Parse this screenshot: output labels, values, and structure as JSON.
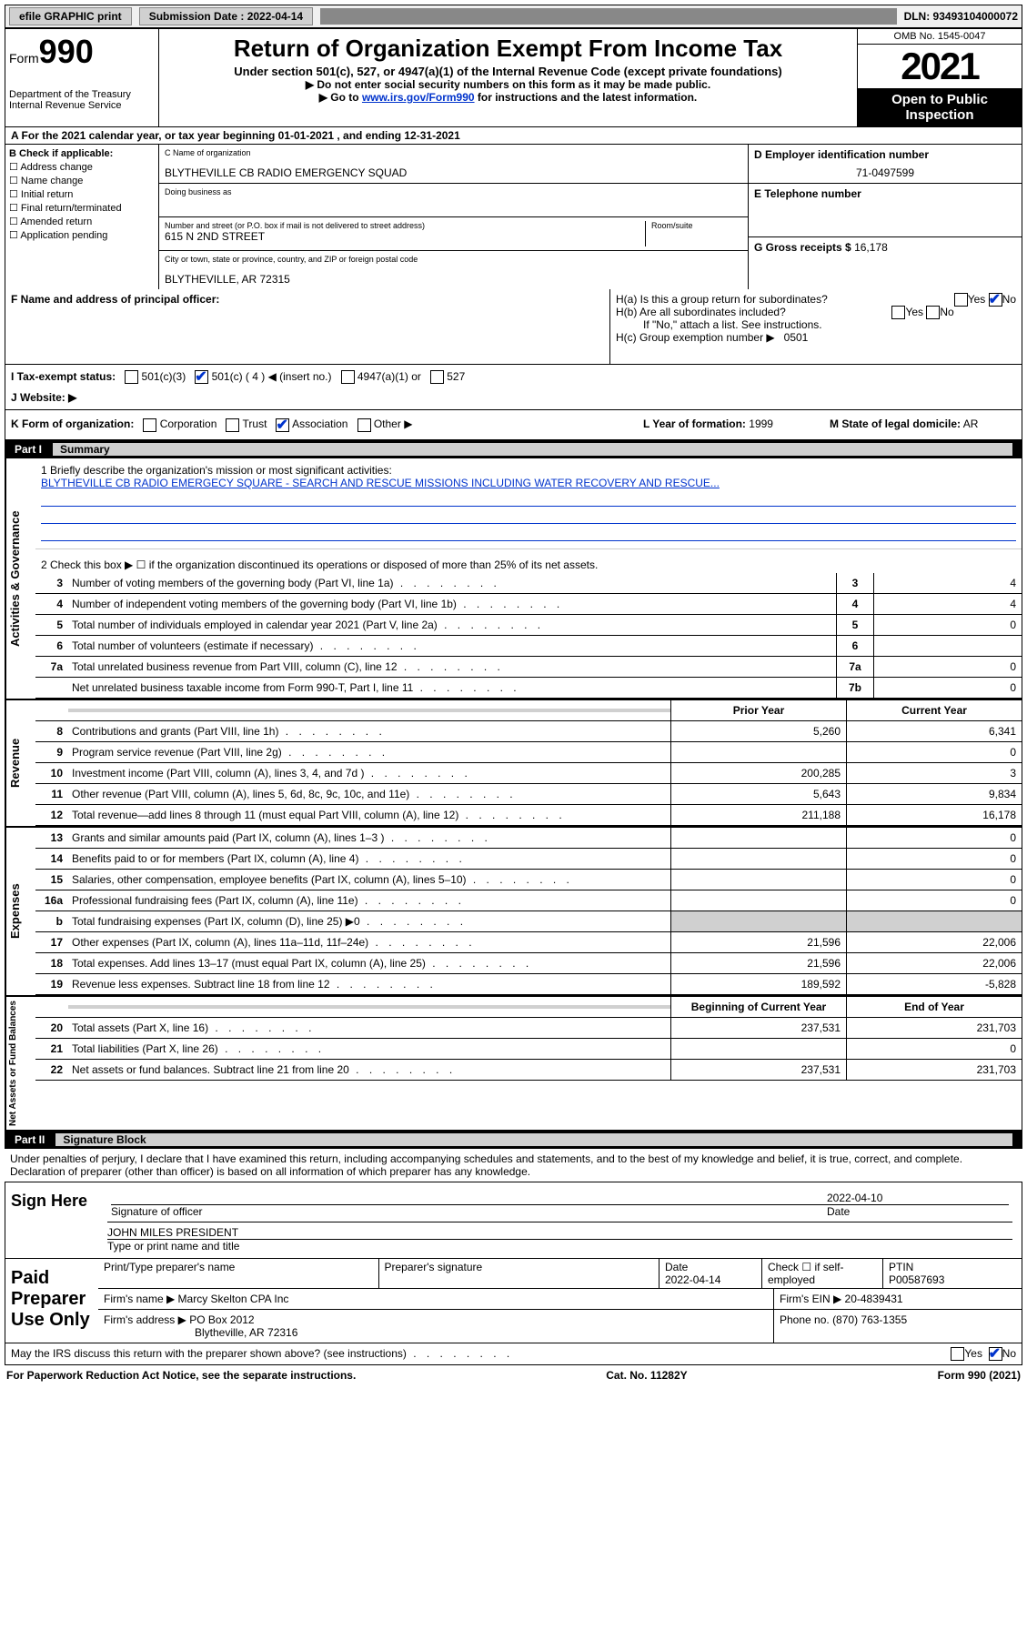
{
  "topbar": {
    "efile_btn": "efile GRAPHIC print",
    "submission_label": "Submission Date : 2022-04-14",
    "dln": "DLN: 93493104000072"
  },
  "header": {
    "form_prefix": "Form",
    "form_number": "990",
    "dept": "Department of the Treasury\nInternal Revenue Service",
    "title": "Return of Organization Exempt From Income Tax",
    "sub1": "Under section 501(c), 527, or 4947(a)(1) of the Internal Revenue Code (except private foundations)",
    "sub2": "▶ Do not enter social security numbers on this form as it may be made public.",
    "sub3_prefix": "▶ Go to ",
    "sub3_link": "www.irs.gov/Form990",
    "sub3_suffix": " for instructions and the latest information.",
    "omb": "OMB No. 1545-0047",
    "year": "2021",
    "open_public": "Open to Public Inspection"
  },
  "rowA": "A For the 2021 calendar year, or tax year beginning 01-01-2021   , and ending 12-31-2021",
  "sectionB": {
    "label": "B Check if applicable:",
    "opts": [
      "Address change",
      "Name change",
      "Initial return",
      "Final return/terminated",
      "Amended return",
      "Application pending"
    ]
  },
  "sectionC": {
    "name_label": "C Name of organization",
    "name": "BLYTHEVILLE CB RADIO EMERGENCY SQUAD",
    "dba_label": "Doing business as",
    "addr_label": "Number and street (or P.O. box if mail is not delivered to street address)",
    "addr": "615 N 2ND STREET",
    "room_label": "Room/suite",
    "city_label": "City or town, state or province, country, and ZIP or foreign postal code",
    "city": "BLYTHEVILLE, AR  72315"
  },
  "sectionD": {
    "label": "D Employer identification number",
    "value": "71-0497599"
  },
  "sectionE": {
    "label": "E Telephone number",
    "value": ""
  },
  "sectionG": {
    "label": "G Gross receipts $",
    "value": "16,178"
  },
  "sectionF": {
    "label": "F Name and address of principal officer:",
    "value": ""
  },
  "sectionH": {
    "ha_label": "H(a)  Is this a group return for subordinates?",
    "hb_label": "H(b)  Are all subordinates included?",
    "hb_note": "If \"No,\" attach a list. See instructions.",
    "hc_label": "H(c)  Group exemption number ▶",
    "hc_value": "0501",
    "yes": "Yes",
    "no": "No"
  },
  "sectionI": {
    "label": "I   Tax-exempt status:",
    "opt1": "501(c)(3)",
    "opt2": "501(c) ( 4 ) ◀ (insert no.)",
    "opt3": "4947(a)(1) or",
    "opt4": "527"
  },
  "sectionJ": {
    "label": "J   Website: ▶",
    "value": ""
  },
  "sectionK": {
    "label": "K Form of organization:",
    "opts": [
      "Corporation",
      "Trust",
      "Association",
      "Other ▶"
    ],
    "checked": 2
  },
  "sectionL": {
    "label": "L Year of formation:",
    "value": "1999"
  },
  "sectionM": {
    "label": "M State of legal domicile:",
    "value": "AR"
  },
  "partI": {
    "label": "Part I",
    "title": "Summary"
  },
  "mission": {
    "label": "1  Briefly describe the organization's mission or most significant activities:",
    "text": "BLYTHEVILLE CB RADIO EMERGECY SQUARE - SEARCH AND RESCUE MISSIONS INCLUDING WATER RECOVERY AND RESCUE..."
  },
  "line2": "2   Check this box ▶ ☐  if the organization discontinued its operations or disposed of more than 25% of its net assets.",
  "governance_lines": [
    {
      "n": "3",
      "desc": "Number of voting members of the governing body (Part VI, line 1a)",
      "box": "3",
      "val": "4"
    },
    {
      "n": "4",
      "desc": "Number of independent voting members of the governing body (Part VI, line 1b)",
      "box": "4",
      "val": "4"
    },
    {
      "n": "5",
      "desc": "Total number of individuals employed in calendar year 2021 (Part V, line 2a)",
      "box": "5",
      "val": "0"
    },
    {
      "n": "6",
      "desc": "Total number of volunteers (estimate if necessary)",
      "box": "6",
      "val": ""
    },
    {
      "n": "7a",
      "desc": "Total unrelated business revenue from Part VIII, column (C), line 12",
      "box": "7a",
      "val": "0"
    },
    {
      "n": "",
      "desc": "Net unrelated business taxable income from Form 990-T, Part I, line 11",
      "box": "7b",
      "val": "0"
    }
  ],
  "col_headers": {
    "prior": "Prior Year",
    "current": "Current Year",
    "beg": "Beginning of Current Year",
    "end": "End of Year"
  },
  "revenue": [
    {
      "n": "8",
      "desc": "Contributions and grants (Part VIII, line 1h)",
      "p": "5,260",
      "c": "6,341"
    },
    {
      "n": "9",
      "desc": "Program service revenue (Part VIII, line 2g)",
      "p": "",
      "c": "0"
    },
    {
      "n": "10",
      "desc": "Investment income (Part VIII, column (A), lines 3, 4, and 7d )",
      "p": "200,285",
      "c": "3"
    },
    {
      "n": "11",
      "desc": "Other revenue (Part VIII, column (A), lines 5, 6d, 8c, 9c, 10c, and 11e)",
      "p": "5,643",
      "c": "9,834"
    },
    {
      "n": "12",
      "desc": "Total revenue—add lines 8 through 11 (must equal Part VIII, column (A), line 12)",
      "p": "211,188",
      "c": "16,178"
    }
  ],
  "expenses": [
    {
      "n": "13",
      "desc": "Grants and similar amounts paid (Part IX, column (A), lines 1–3 )",
      "p": "",
      "c": "0"
    },
    {
      "n": "14",
      "desc": "Benefits paid to or for members (Part IX, column (A), line 4)",
      "p": "",
      "c": "0"
    },
    {
      "n": "15",
      "desc": "Salaries, other compensation, employee benefits (Part IX, column (A), lines 5–10)",
      "p": "",
      "c": "0"
    },
    {
      "n": "16a",
      "desc": "Professional fundraising fees (Part IX, column (A), line 11e)",
      "p": "",
      "c": "0"
    },
    {
      "n": "b",
      "desc": "Total fundraising expenses (Part IX, column (D), line 25) ▶0",
      "p": "shaded",
      "c": "shaded"
    },
    {
      "n": "17",
      "desc": "Other expenses (Part IX, column (A), lines 11a–11d, 11f–24e)",
      "p": "21,596",
      "c": "22,006"
    },
    {
      "n": "18",
      "desc": "Total expenses. Add lines 13–17 (must equal Part IX, column (A), line 25)",
      "p": "21,596",
      "c": "22,006"
    },
    {
      "n": "19",
      "desc": "Revenue less expenses. Subtract line 18 from line 12",
      "p": "189,592",
      "c": "-5,828"
    }
  ],
  "netassets": [
    {
      "n": "20",
      "desc": "Total assets (Part X, line 16)",
      "p": "237,531",
      "c": "231,703"
    },
    {
      "n": "21",
      "desc": "Total liabilities (Part X, line 26)",
      "p": "",
      "c": "0"
    },
    {
      "n": "22",
      "desc": "Net assets or fund balances. Subtract line 21 from line 20",
      "p": "237,531",
      "c": "231,703"
    }
  ],
  "side_labels": {
    "gov": "Activities & Governance",
    "rev": "Revenue",
    "exp": "Expenses",
    "net": "Net Assets or Fund Balances"
  },
  "partII": {
    "label": "Part II",
    "title": "Signature Block"
  },
  "sig_decl": "Under penalties of perjury, I declare that I have examined this return, including accompanying schedules and statements, and to the best of my knowledge and belief, it is true, correct, and complete. Declaration of preparer (other than officer) is based on all information of which preparer has any knowledge.",
  "sign_here": {
    "label": "Sign Here",
    "officer_sig": "Signature of officer",
    "date": "2022-04-10",
    "name_title": "JOHN MILES  PRESIDENT",
    "name_label": "Type or print name and title"
  },
  "paid_prep": {
    "label": "Paid Preparer Use Only",
    "col1": "Print/Type preparer's name",
    "col2": "Preparer's signature",
    "col3_label": "Date",
    "col3_val": "2022-04-14",
    "col4_label": "Check ☐ if self-employed",
    "col5_label": "PTIN",
    "col5_val": "P00587693",
    "firm_name_label": "Firm's name    ▶",
    "firm_name": "Marcy Skelton CPA Inc",
    "firm_ein_label": "Firm's EIN ▶",
    "firm_ein": "20-4839431",
    "firm_addr_label": "Firm's address ▶",
    "firm_addr1": "PO Box 2012",
    "firm_addr2": "Blytheville, AR  72316",
    "phone_label": "Phone no.",
    "phone": "(870) 763-1355"
  },
  "may_irs": "May the IRS discuss this return with the preparer shown above? (see instructions)",
  "footer": {
    "left": "For Paperwork Reduction Act Notice, see the separate instructions.",
    "mid": "Cat. No. 11282Y",
    "right": "Form 990 (2021)"
  }
}
